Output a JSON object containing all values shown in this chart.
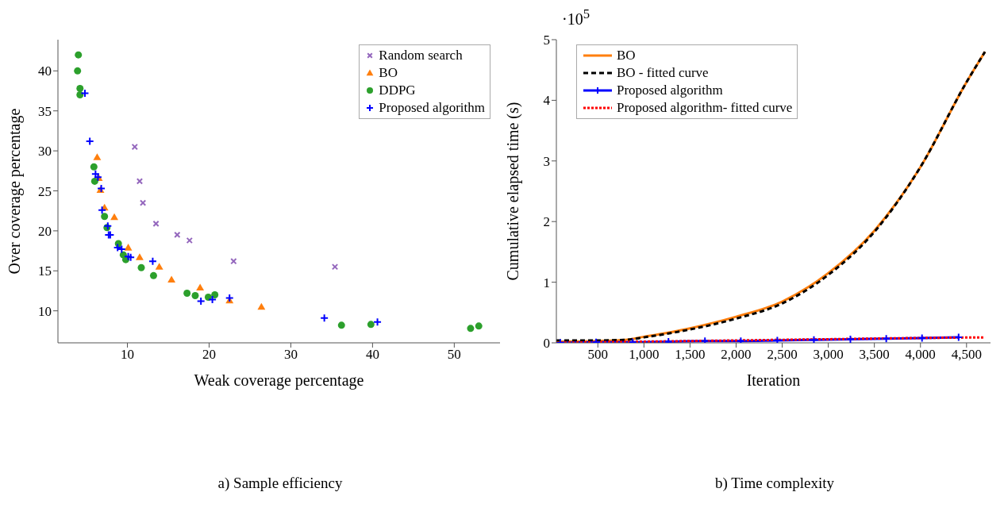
{
  "chart_data": [
    {
      "type": "scatter",
      "title": "a) Sample efficiency",
      "xlabel": "Weak coverage percentage",
      "ylabel": "Over coverage percentage",
      "xlim": [
        1.5,
        55.6
      ],
      "ylim": [
        6,
        43.9
      ],
      "xticks": [
        10,
        20,
        30,
        40,
        50
      ],
      "yticks": [
        10,
        15,
        20,
        25,
        30,
        35,
        40
      ],
      "legend": "top right",
      "series": [
        {
          "name": "Random search",
          "color": "#9467bd",
          "marker": "cross",
          "x": [
            10.9,
            11.5,
            11.9,
            13.5,
            16.1,
            17.6,
            23.0,
            35.4
          ],
          "values": [
            30.5,
            26.2,
            23.5,
            20.9,
            19.5,
            18.8,
            16.2,
            15.5
          ]
        },
        {
          "name": "BO",
          "color": "#ff7f0e",
          "marker": "triangle",
          "x": [
            6.3,
            6.5,
            6.7,
            7.2,
            8.4,
            10.1,
            11.5,
            13.9,
            15.4,
            18.9,
            22.5,
            26.4
          ],
          "values": [
            29.2,
            26.6,
            25.1,
            22.9,
            21.7,
            17.9,
            16.7,
            15.5,
            13.9,
            12.9,
            11.3,
            10.5
          ]
        },
        {
          "name": "DDPG",
          "color": "#2ca02c",
          "marker": "circle",
          "x": [
            4.0,
            3.9,
            4.2,
            4.2,
            5.9,
            6.0,
            7.2,
            7.5,
            8.9,
            9.5,
            9.8,
            11.7,
            13.2,
            17.3,
            18.3,
            19.9,
            20.7,
            36.2,
            39.8,
            52.0,
            53.0
          ],
          "values": [
            42.0,
            40.0,
            37.8,
            37.0,
            28.0,
            26.2,
            21.8,
            20.4,
            18.4,
            17.0,
            16.4,
            15.4,
            14.4,
            12.2,
            11.9,
            11.7,
            12.0,
            8.2,
            8.3,
            7.8,
            8.1
          ]
        },
        {
          "name": "Proposed algorithm",
          "color": "#0000ff",
          "marker": "plus",
          "x": [
            4.8,
            5.4,
            6.1,
            6.4,
            6.8,
            6.9,
            7.6,
            7.7,
            7.9,
            8.8,
            9.3,
            10.1,
            10.4,
            13.1,
            19.0,
            20.4,
            22.5,
            34.1,
            40.6
          ],
          "values": [
            37.2,
            31.2,
            27.1,
            26.7,
            25.3,
            22.6,
            20.6,
            19.5,
            19.5,
            17.9,
            17.7,
            16.8,
            16.7,
            16.2,
            11.2,
            11.4,
            11.6,
            9.1,
            8.6
          ]
        }
      ]
    },
    {
      "type": "line",
      "title": "b) Time complexity",
      "xlabel": "Iteration",
      "ylabel": "Cumulative elapsed time (s)",
      "annotations": [
        "·10$^{5}$"
      ],
      "xlim": [
        50,
        4760
      ],
      "ylim": [
        0,
        5
      ],
      "xticks": [
        {
          "value": 500,
          "label": "500"
        },
        {
          "value": 1000,
          "label": "1,000"
        },
        {
          "value": 1500,
          "label": "1,500"
        },
        {
          "value": 2000,
          "label": "2,000"
        },
        {
          "value": 2500,
          "label": "2,500"
        },
        {
          "value": 3000,
          "label": "3,000"
        },
        {
          "value": 3500,
          "label": "3,500"
        },
        {
          "value": 4000,
          "label": "4,000"
        },
        {
          "value": 4500,
          "label": "4,500"
        }
      ],
      "yticks": [
        0,
        1,
        2,
        3,
        4,
        5
      ],
      "legend": "top left",
      "series": [
        {
          "name": "BO",
          "color": "#ff7f0e",
          "line_style": "solid",
          "marker": "none",
          "x": [
            50,
            500,
            800,
            1000,
            1500,
            2000,
            2500,
            3000,
            3500,
            4000,
            4500,
            4700
          ],
          "values": [
            0.02,
            0.03,
            0.05,
            0.1,
            0.24,
            0.43,
            0.68,
            1.15,
            1.85,
            2.9,
            4.3,
            4.8
          ]
        },
        {
          "name": "BO - fitted curve",
          "color": "#000000",
          "line_style": "dashed",
          "marker": "none",
          "x": [
            50,
            500,
            800,
            1000,
            1500,
            2000,
            2500,
            3000,
            3500,
            4000,
            4500,
            4700
          ],
          "values": [
            0.04,
            0.04,
            0.05,
            0.09,
            0.22,
            0.4,
            0.65,
            1.12,
            1.83,
            2.9,
            4.3,
            4.8
          ]
        },
        {
          "name": "Proposed algorithm",
          "color": "#0000ff",
          "line_style": "solid",
          "marker": "plus",
          "x": [
            93,
            481,
            878,
            1266,
            1662,
            2051,
            2447,
            2844,
            3240,
            3629,
            4017,
            4414
          ],
          "values": [
            0,
            0.01,
            0.01,
            0.02,
            0.03,
            0.03,
            0.04,
            0.05,
            0.06,
            0.07,
            0.08,
            0.09
          ]
        },
        {
          "name": "Proposed algorithm- fitted curve",
          "color": "#ff0000",
          "line_style": "dotted",
          "marker": "none",
          "x": [
            50,
            1000,
            2000,
            3000,
            4000,
            4700
          ],
          "values": [
            0,
            0.02,
            0.04,
            0.06,
            0.08,
            0.09
          ]
        }
      ]
    }
  ]
}
